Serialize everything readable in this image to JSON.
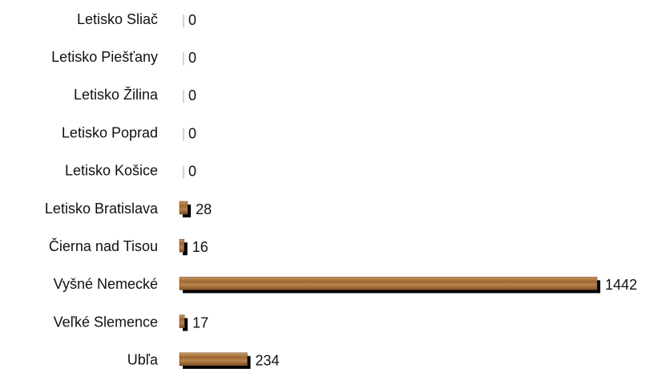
{
  "chart_data": {
    "type": "bar",
    "orientation": "horizontal",
    "categories": [
      "Letisko Sliač",
      "Letisko Piešťany",
      "Letisko Žilina",
      "Letisko Poprad",
      "Letisko Košice",
      "Letisko Bratislava",
      "Čierna nad Tisou",
      "Vyšné Nemecké",
      "Veľké Slemence",
      "Ubľa"
    ],
    "values": [
      0,
      0,
      0,
      0,
      0,
      28,
      16,
      1442,
      17,
      234
    ],
    "color": "#a8723d"
  }
}
